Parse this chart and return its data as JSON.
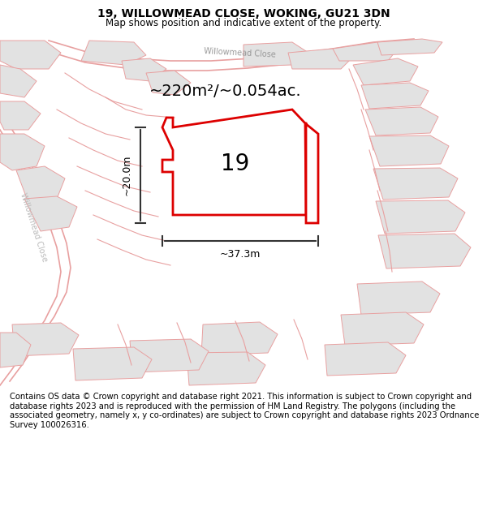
{
  "title": "19, WILLOWMEAD CLOSE, WOKING, GU21 3DN",
  "subtitle": "Map shows position and indicative extent of the property.",
  "area_text": "~220m²/~0.054ac.",
  "width_text": "~37.3m",
  "height_text": "~20.0m",
  "plot_number": "19",
  "footer": "Contains OS data © Crown copyright and database right 2021. This information is subject to Crown copyright and database rights 2023 and is reproduced with the permission of HM Land Registry. The polygons (including the associated geometry, namely x, y co-ordinates) are subject to Crown copyright and database rights 2023 Ordnance Survey 100026316.",
  "title_fontsize": 10,
  "subtitle_fontsize": 8.5,
  "footer_fontsize": 7.2,
  "area_fontsize": 14,
  "number_fontsize": 20,
  "dim_fontsize": 9
}
